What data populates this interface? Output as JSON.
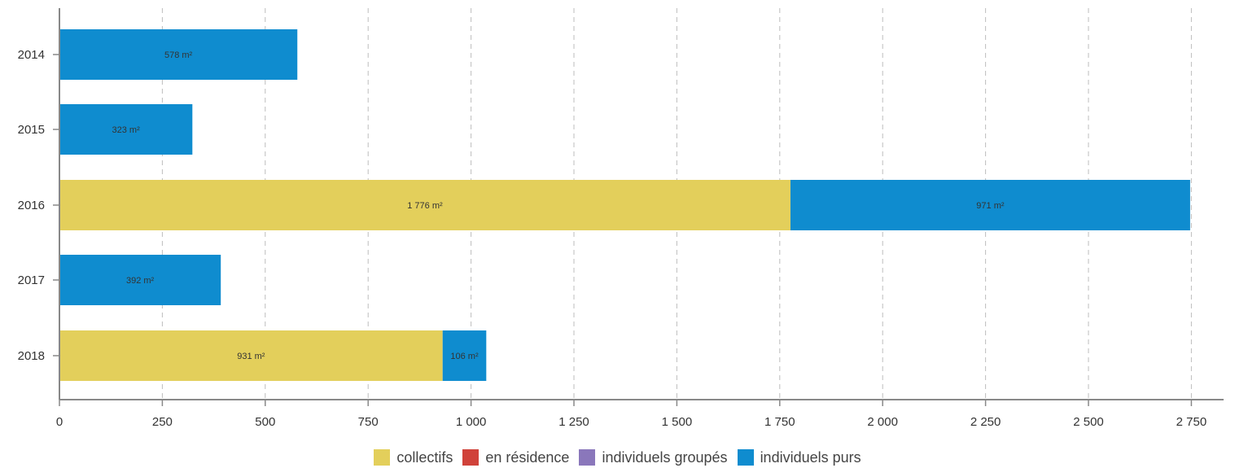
{
  "chart_data": {
    "type": "bar",
    "orientation": "horizontal",
    "stacked": true,
    "categories": [
      "2014",
      "2015",
      "2016",
      "2017",
      "2018"
    ],
    "series": [
      {
        "name": "collectifs",
        "color": "#e3cf5b",
        "values": [
          0,
          0,
          1776,
          0,
          931
        ]
      },
      {
        "name": "en résidence",
        "color": "#d0423a",
        "values": [
          0,
          0,
          0,
          0,
          0
        ]
      },
      {
        "name": "individuels groupés",
        "color": "#8a77bb",
        "values": [
          0,
          0,
          0,
          0,
          0
        ]
      },
      {
        "name": "individuels purs",
        "color": "#0f8ccf",
        "values": [
          578,
          323,
          971,
          392,
          106
        ]
      }
    ],
    "data_labels": [
      [
        "",
        "",
        "",
        "578 m²"
      ],
      [
        "",
        "",
        "",
        "323 m²"
      ],
      [
        "1 776 m²",
        "",
        "",
        "971 m²"
      ],
      [
        "",
        "",
        "",
        "392 m²"
      ],
      [
        "931 m²",
        "",
        "",
        "106 m²"
      ]
    ],
    "x_ticks": [
      0,
      250,
      500,
      750,
      1000,
      1250,
      1500,
      1750,
      2000,
      2250,
      2500,
      2750
    ],
    "x_tick_labels": [
      "0",
      "250",
      "500",
      "750",
      "1 000",
      "1 250",
      "1 500",
      "1 750",
      "2 000",
      "2 250",
      "2 500",
      "2 750"
    ],
    "xlim": [
      0,
      2850
    ],
    "title": "",
    "xlabel": "",
    "ylabel": "",
    "grid": "vertical dashed",
    "legend": "bottom-center"
  }
}
